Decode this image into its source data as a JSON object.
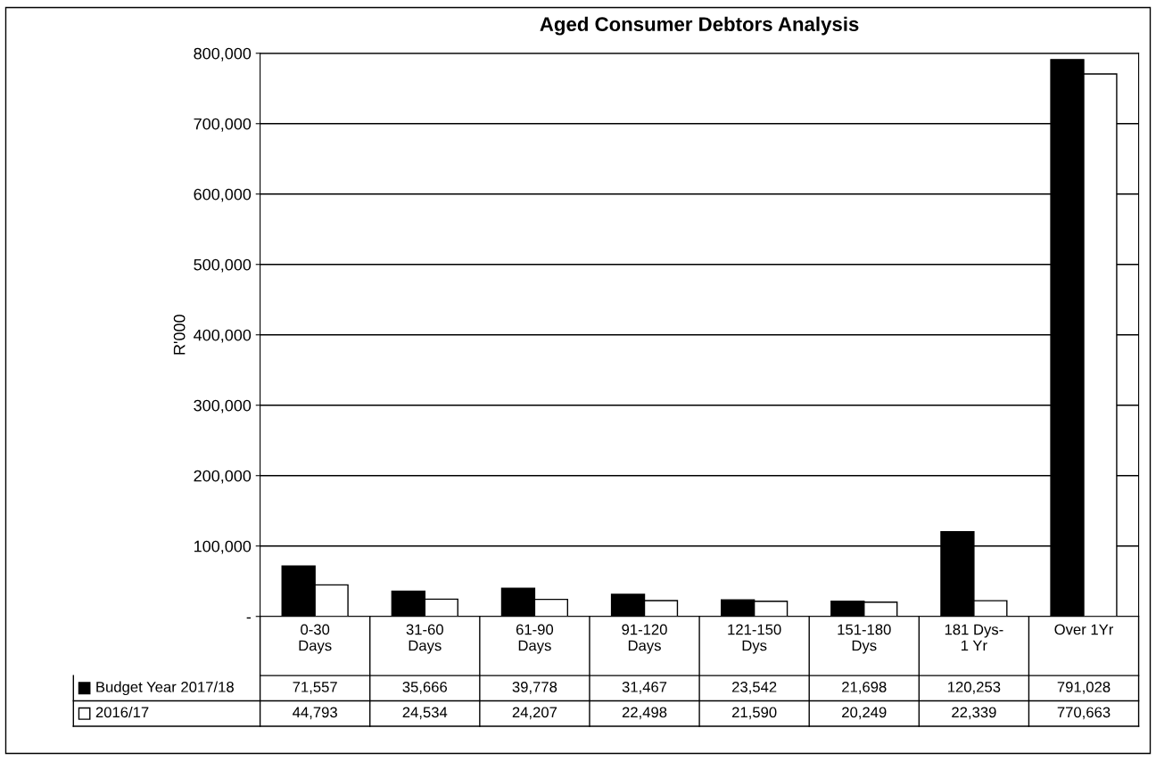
{
  "chart_data": {
    "type": "bar",
    "title": "Aged Consumer Debtors Analysis",
    "ylabel": "R'000",
    "categories": [
      "0-30\nDays",
      "31-60\nDays",
      "61-90\nDays",
      "91-120\nDays",
      "121-150\nDys",
      "151-180\nDys",
      "181 Dys-\n1 Yr",
      "Over 1Yr"
    ],
    "series": [
      {
        "name": "Budget Year 2017/18",
        "color": "#000000",
        "values": [
          71557,
          35666,
          39778,
          31467,
          23542,
          21698,
          120253,
          791028
        ],
        "value_labels": [
          "71,557",
          "35,666",
          "39,778",
          "31,467",
          "23,542",
          "21,698",
          "120,253",
          "791,028"
        ]
      },
      {
        "name": "2016/17",
        "color": "#ffffff",
        "values": [
          44793,
          24534,
          24207,
          22498,
          21590,
          20249,
          22339,
          770663
        ],
        "value_labels": [
          "44,793",
          "24,534",
          "24,207",
          "22,498",
          "21,590",
          "20,249",
          "22,339",
          "770,663"
        ]
      }
    ],
    "ylim": [
      0,
      800000
    ],
    "yticks": [
      {
        "value": 0,
        "label": "-"
      },
      {
        "value": 100000,
        "label": "100,000"
      },
      {
        "value": 200000,
        "label": "200,000"
      },
      {
        "value": 300000,
        "label": "300,000"
      },
      {
        "value": 400000,
        "label": "400,000"
      },
      {
        "value": 500000,
        "label": "500,000"
      },
      {
        "value": 600000,
        "label": "600,000"
      },
      {
        "value": 700000,
        "label": "700,000"
      },
      {
        "value": 800000,
        "label": "800,000"
      }
    ],
    "grid": "y",
    "legend": "bottom left"
  }
}
